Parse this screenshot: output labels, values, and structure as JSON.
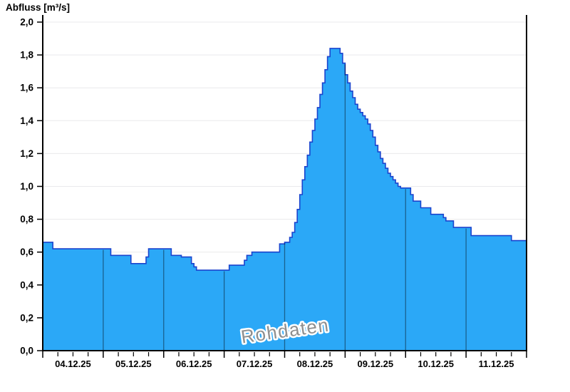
{
  "colors": {
    "background": "#ffffff",
    "area_fill": "#2BA8F7",
    "area_stroke": "#1B44CE",
    "grid": "#E9E9EC",
    "day_line": "rgba(0,0,0,0.42)",
    "axis": "#000000",
    "label": "#000000",
    "watermark": "#8f8f8f"
  },
  "watermark": {
    "text": "Rohdaten"
  },
  "chart_data": {
    "type": "area",
    "step": true,
    "title": "Abfluss [m³/s]",
    "ylabel": "Abfluss [m³/s]",
    "xlabel": "",
    "unit": "m³/s",
    "ylim": [
      0.0,
      2.0
    ],
    "ytick_interval": 0.2,
    "ytick_labels": [
      "0,0",
      "0,2",
      "0,4",
      "0,6",
      "0,8",
      "1,0",
      "1,2",
      "1,4",
      "1,6",
      "1,8",
      "2,0"
    ],
    "x_day_labels": [
      "04.12.25",
      "05.12.25",
      "06.12.25",
      "07.12.25",
      "08.12.25",
      "09.12.25",
      "10.12.25",
      "11.12.25"
    ],
    "samples_per_day": 24,
    "grid": "horizontal gridlines every 0.2; vertical day-boundary lines clipped to filled area",
    "legend": "none",
    "annotations": [
      "Rohdaten"
    ],
    "series": [
      {
        "name": "Abfluss",
        "values": [
          0.66,
          0.66,
          0.66,
          0.66,
          0.62,
          0.62,
          0.62,
          0.62,
          0.62,
          0.62,
          0.62,
          0.62,
          0.62,
          0.62,
          0.62,
          0.62,
          0.62,
          0.62,
          0.62,
          0.62,
          0.62,
          0.62,
          0.62,
          0.62,
          0.62,
          0.62,
          0.62,
          0.58,
          0.58,
          0.58,
          0.58,
          0.58,
          0.58,
          0.58,
          0.58,
          0.53,
          0.53,
          0.53,
          0.53,
          0.53,
          0.53,
          0.57,
          0.62,
          0.62,
          0.62,
          0.62,
          0.62,
          0.62,
          0.62,
          0.62,
          0.62,
          0.58,
          0.58,
          0.58,
          0.58,
          0.57,
          0.57,
          0.57,
          0.57,
          0.53,
          0.51,
          0.49,
          0.49,
          0.49,
          0.49,
          0.49,
          0.49,
          0.49,
          0.49,
          0.49,
          0.49,
          0.49,
          0.49,
          0.49,
          0.52,
          0.52,
          0.52,
          0.52,
          0.52,
          0.52,
          0.55,
          0.58,
          0.58,
          0.6,
          0.6,
          0.6,
          0.6,
          0.6,
          0.6,
          0.6,
          0.6,
          0.6,
          0.6,
          0.6,
          0.65,
          0.65,
          0.66,
          0.66,
          0.69,
          0.72,
          0.78,
          0.86,
          0.95,
          1.04,
          1.12,
          1.19,
          1.27,
          1.34,
          1.41,
          1.48,
          1.56,
          1.63,
          1.71,
          1.79,
          1.84,
          1.84,
          1.84,
          1.84,
          1.81,
          1.75,
          1.68,
          1.63,
          1.58,
          1.54,
          1.5,
          1.47,
          1.45,
          1.43,
          1.41,
          1.38,
          1.34,
          1.3,
          1.25,
          1.21,
          1.17,
          1.14,
          1.11,
          1.08,
          1.06,
          1.04,
          1.02,
          1.0,
          0.99,
          0.99,
          0.99,
          0.99,
          0.95,
          0.91,
          0.91,
          0.91,
          0.87,
          0.87,
          0.87,
          0.87,
          0.83,
          0.83,
          0.83,
          0.83,
          0.83,
          0.81,
          0.79,
          0.79,
          0.79,
          0.75,
          0.75,
          0.75,
          0.75,
          0.75,
          0.75,
          0.75,
          0.7,
          0.7,
          0.7,
          0.7,
          0.7,
          0.7,
          0.7,
          0.7,
          0.7,
          0.7,
          0.7,
          0.7,
          0.7,
          0.7,
          0.7,
          0.7,
          0.67,
          0.67,
          0.67,
          0.67,
          0.67,
          0.67
        ]
      }
    ]
  }
}
